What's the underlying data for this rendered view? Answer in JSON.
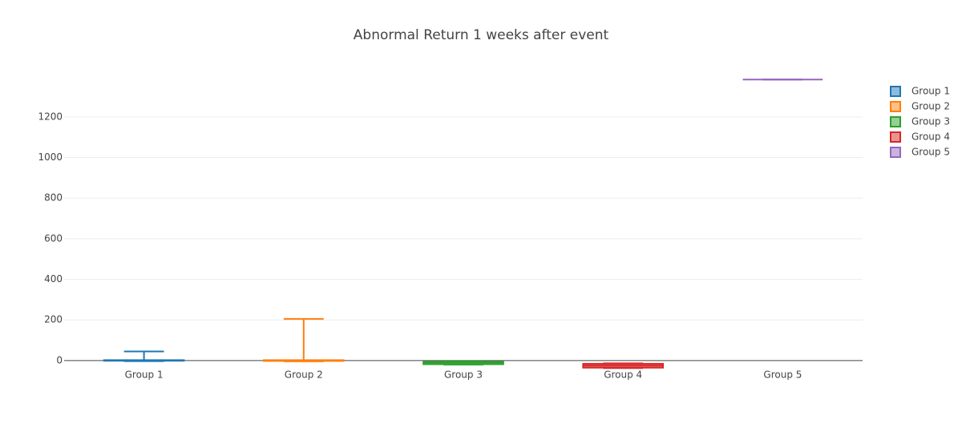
{
  "chart_data": {
    "type": "box",
    "title": "Abnormal Return 1 weeks after event",
    "categories": [
      "Group 1",
      "Group 2",
      "Group 3",
      "Group 4",
      "Group 5"
    ],
    "series": [
      {
        "name": "Group 1",
        "color": "#1f77b4",
        "min": -3,
        "q1": -1,
        "median": 0,
        "q3": 2,
        "max": 45
      },
      {
        "name": "Group 2",
        "color": "#ff7f0e",
        "min": -4,
        "q1": -2,
        "median": 0,
        "q3": 2,
        "max": 205
      },
      {
        "name": "Group 3",
        "color": "#2ca02c",
        "min": -20,
        "q1": -18,
        "median": -10,
        "q3": -6,
        "max": -4
      },
      {
        "name": "Group 4",
        "color": "#d62728",
        "min": -37,
        "q1": -35,
        "median": -25,
        "q3": -16,
        "max": -14
      },
      {
        "name": "Group 5",
        "color": "#9467bd",
        "min": 1384,
        "q1": 1384,
        "median": 1384,
        "q3": 1384,
        "max": 1384
      }
    ],
    "ylim": [
      -40,
      1460
    ],
    "yticks": [
      0,
      200,
      400,
      600,
      800,
      1000,
      1200
    ],
    "grid": true,
    "legend": "right"
  }
}
